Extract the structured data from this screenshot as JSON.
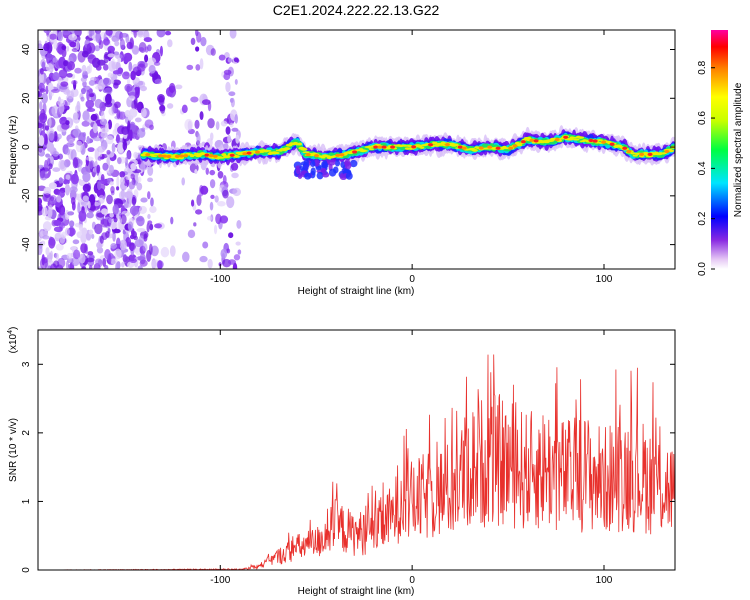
{
  "title": "C2E1.2024.222.22.13.G22",
  "chart_data": [
    {
      "type": "heatmap",
      "xlabel": "Height of straight line (km)",
      "ylabel": "Frequency (Hz)",
      "xlim": [
        -195,
        137
      ],
      "ylim": [
        -50,
        48
      ],
      "xticks": [
        -100,
        0,
        100
      ],
      "yticks": [
        -40,
        -20,
        0,
        20,
        40
      ],
      "colorbar": {
        "label": "Normalized spectral amplitude",
        "range": [
          0.0,
          0.95
        ],
        "ticks": [
          "0.0",
          "0.2",
          "0.4",
          "0.6",
          "0.8"
        ]
      },
      "ridge": {
        "x": [
          -140,
          -125,
          -110,
          -100,
          -90,
          -80,
          -70,
          -60,
          -55,
          -45,
          -35,
          -25,
          -20,
          -10,
          0,
          10,
          20,
          30,
          40,
          50,
          60,
          70,
          80,
          90,
          100,
          110,
          115,
          120,
          130,
          137
        ],
        "freq": [
          -3,
          -4,
          -3,
          -4,
          -3,
          -2,
          -2,
          2,
          -3,
          -4,
          -3,
          -1,
          0,
          0,
          0,
          1,
          1,
          -1,
          0,
          -1,
          3,
          2,
          4,
          3,
          2,
          0,
          -3,
          -3,
          -3,
          0
        ]
      },
      "noise_region_x": [
        -195,
        -90
      ]
    },
    {
      "type": "line",
      "xlabel": "Height of straight line (km)",
      "ylabel": "SNR (10 * v/v)",
      "y_multiplier": "(x10",
      "y_multiplier_exp": "4",
      "y_multiplier_close": ")",
      "xlim": [
        -195,
        137
      ],
      "ylim": [
        0,
        3.5
      ],
      "xticks": [
        -100,
        0,
        100
      ],
      "yticks": [
        0,
        1,
        2,
        3
      ],
      "color": "#e8302c",
      "envelope": {
        "x": [
          -195,
          -90,
          -80,
          -70,
          -60,
          -50,
          -45,
          -40,
          -30,
          -20,
          -10,
          -5,
          0,
          10,
          20,
          30,
          40,
          50,
          60,
          70,
          80,
          90,
          100,
          110,
          120,
          130,
          137
        ],
        "y": [
          0.0,
          0.02,
          0.08,
          0.3,
          0.5,
          0.6,
          0.8,
          1.0,
          0.8,
          0.9,
          1.2,
          1.8,
          1.5,
          1.7,
          1.8,
          2.3,
          2.5,
          2.4,
          2.2,
          2.3,
          2.1,
          2.2,
          2.0,
          2.2,
          2.1,
          1.9,
          1.8
        ]
      }
    }
  ]
}
